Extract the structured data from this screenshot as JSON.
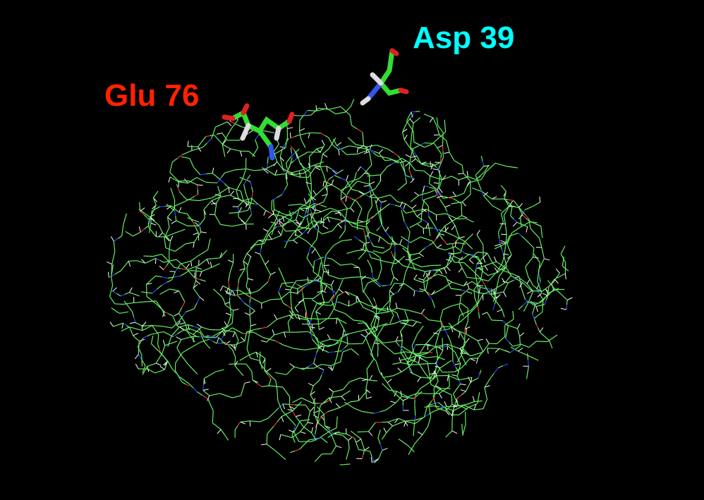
{
  "labels": [
    {
      "text": "Glu 76"
    },
    {
      "text": "Asp 39"
    }
  ]
}
